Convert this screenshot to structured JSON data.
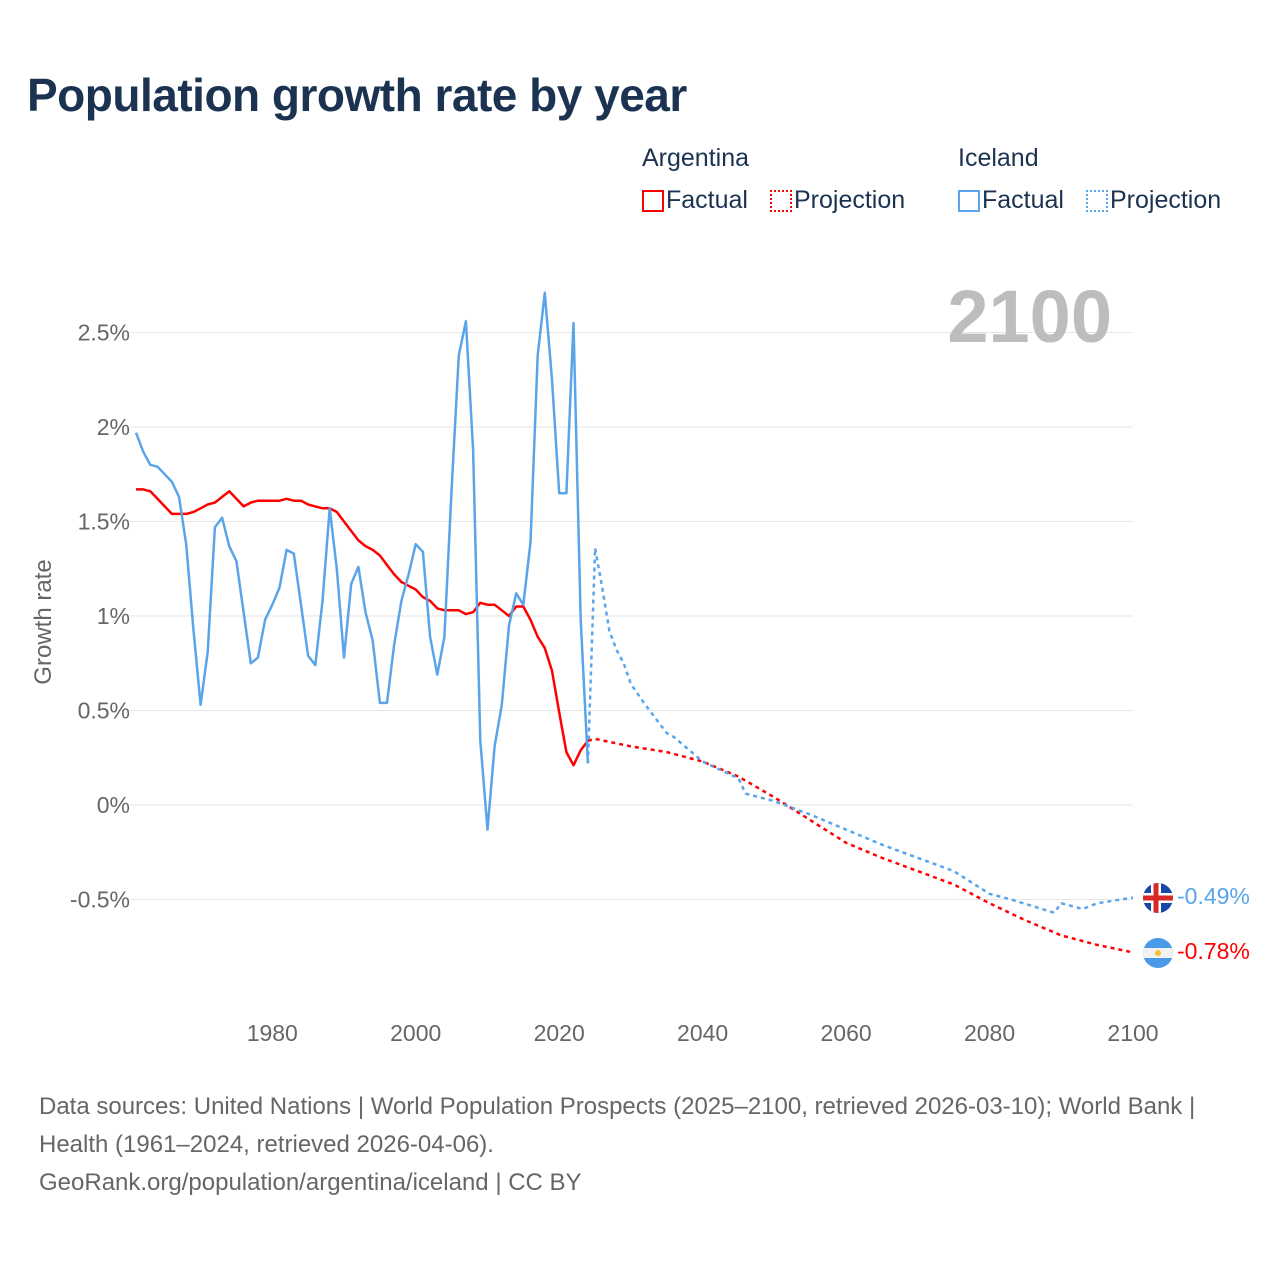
{
  "title": "Population growth rate by year",
  "legend": {
    "groups": [
      {
        "name": "Argentina",
        "factual": "Factual",
        "projection": "Projection",
        "color": "#ff0000"
      },
      {
        "name": "Iceland",
        "factual": "Factual",
        "projection": "Projection",
        "color": "#5aa5ea"
      }
    ]
  },
  "year_watermark": "2100",
  "end_labels": {
    "iceland": "-0.49%",
    "argentina": "-0.78%"
  },
  "footer": {
    "sources": "Data sources: United Nations | World Population Prospects (2025–2100, retrieved 2026-03-10); World Bank | Health (1961–2024, retrieved 2026-04-06).",
    "credit": "GeoRank.org/population/argentina/iceland | CC BY"
  },
  "chart_data": {
    "type": "line",
    "title": "Population growth rate by year",
    "xlabel": "",
    "ylabel": "Growth rate",
    "xlim": [
      1961,
      2100
    ],
    "ylim": [
      -0.9,
      2.8
    ],
    "xticks": [
      1980,
      2000,
      2020,
      2040,
      2060,
      2080,
      2100
    ],
    "xtick_labels": [
      "1980",
      "2000",
      "2020",
      "2040",
      "2060",
      "2080",
      "2100"
    ],
    "yticks": [
      -0.5,
      0,
      0.5,
      1,
      1.5,
      2,
      2.5
    ],
    "ytick_labels": [
      "-0.5%",
      "0%",
      "0.5%",
      "1%",
      "1.5%",
      "2%",
      "2.5%"
    ],
    "grid": true,
    "legend_position": "top-right",
    "series": [
      {
        "name": "Argentina Factual",
        "color": "#ff0000",
        "style": "solid",
        "x": [
          1961,
          1962,
          1963,
          1964,
          1965,
          1966,
          1967,
          1968,
          1969,
          1970,
          1971,
          1972,
          1973,
          1974,
          1975,
          1976,
          1977,
          1978,
          1979,
          1980,
          1981,
          1982,
          1983,
          1984,
          1985,
          1986,
          1987,
          1988,
          1989,
          1990,
          1991,
          1992,
          1993,
          1994,
          1995,
          1996,
          1997,
          1998,
          1999,
          2000,
          2001,
          2002,
          2003,
          2004,
          2005,
          2006,
          2007,
          2008,
          2009,
          2010,
          2011,
          2012,
          2013,
          2014,
          2015,
          2016,
          2017,
          2018,
          2019,
          2020,
          2021,
          2022,
          2023,
          2024
        ],
        "y": [
          1.67,
          1.67,
          1.66,
          1.62,
          1.58,
          1.54,
          1.54,
          1.54,
          1.55,
          1.57,
          1.59,
          1.6,
          1.63,
          1.66,
          1.62,
          1.58,
          1.6,
          1.61,
          1.61,
          1.61,
          1.61,
          1.62,
          1.61,
          1.61,
          1.59,
          1.58,
          1.57,
          1.57,
          1.55,
          1.5,
          1.45,
          1.4,
          1.37,
          1.35,
          1.32,
          1.27,
          1.22,
          1.18,
          1.16,
          1.14,
          1.1,
          1.08,
          1.04,
          1.03,
          1.03,
          1.03,
          1.01,
          1.02,
          1.07,
          1.06,
          1.06,
          1.03,
          1.0,
          1.05,
          1.05,
          0.98,
          0.89,
          0.83,
          0.71,
          0.49,
          0.28,
          0.21,
          0.29,
          0.34
        ]
      },
      {
        "name": "Argentina Projection",
        "color": "#ff0000",
        "style": "dotted",
        "x": [
          2024,
          2025,
          2030,
          2035,
          2040,
          2045,
          2050,
          2055,
          2060,
          2065,
          2070,
          2075,
          2080,
          2085,
          2090,
          2095,
          2100
        ],
        "y": [
          0.34,
          0.35,
          0.31,
          0.28,
          0.23,
          0.15,
          0.04,
          -0.08,
          -0.2,
          -0.28,
          -0.35,
          -0.42,
          -0.52,
          -0.61,
          -0.69,
          -0.74,
          -0.78
        ]
      },
      {
        "name": "Iceland Factual",
        "color": "#5aa5ea",
        "style": "solid",
        "x": [
          1961,
          1962,
          1963,
          1964,
          1965,
          1966,
          1967,
          1968,
          1969,
          1970,
          1971,
          1972,
          1973,
          1974,
          1975,
          1976,
          1977,
          1978,
          1979,
          1980,
          1981,
          1982,
          1983,
          1984,
          1985,
          1986,
          1987,
          1988,
          1989,
          1990,
          1991,
          1992,
          1993,
          1994,
          1995,
          1996,
          1997,
          1998,
          1999,
          2000,
          2001,
          2002,
          2003,
          2004,
          2005,
          2006,
          2007,
          2008,
          2009,
          2010,
          2011,
          2012,
          2013,
          2014,
          2015,
          2016,
          2017,
          2018,
          2019,
          2020,
          2021,
          2022,
          2023,
          2024
        ],
        "y": [
          1.97,
          1.87,
          1.8,
          1.79,
          1.75,
          1.71,
          1.63,
          1.38,
          0.93,
          0.53,
          0.81,
          1.47,
          1.52,
          1.37,
          1.29,
          1.02,
          0.75,
          0.78,
          0.98,
          1.06,
          1.15,
          1.35,
          1.33,
          1.06,
          0.79,
          0.74,
          1.08,
          1.57,
          1.25,
          0.78,
          1.17,
          1.26,
          1.02,
          0.87,
          0.54,
          0.54,
          0.85,
          1.08,
          1.22,
          1.38,
          1.34,
          0.89,
          0.69,
          0.89,
          1.67,
          2.38,
          2.56,
          1.88,
          0.34,
          -0.13,
          0.31,
          0.53,
          0.95,
          1.12,
          1.06,
          1.39,
          2.38,
          2.71,
          2.25,
          1.65,
          1.65,
          2.55,
          0.98,
          0.22
        ]
      },
      {
        "name": "Iceland Projection",
        "color": "#5aa5ea",
        "style": "dotted",
        "x": [
          2024,
          2025,
          2026,
          2027,
          2028,
          2029,
          2030,
          2032,
          2035,
          2036,
          2040,
          2045,
          2046,
          2050,
          2055,
          2060,
          2065,
          2070,
          2075,
          2080,
          2083,
          2089,
          2090,
          2093,
          2095,
          2100
        ],
        "y": [
          0.22,
          1.36,
          1.15,
          0.92,
          0.82,
          0.75,
          0.64,
          0.53,
          0.38,
          0.36,
          0.23,
          0.14,
          0.06,
          0.02,
          -0.05,
          -0.13,
          -0.21,
          -0.28,
          -0.35,
          -0.47,
          -0.5,
          -0.57,
          -0.52,
          -0.55,
          -0.52,
          -0.49
        ]
      }
    ]
  }
}
